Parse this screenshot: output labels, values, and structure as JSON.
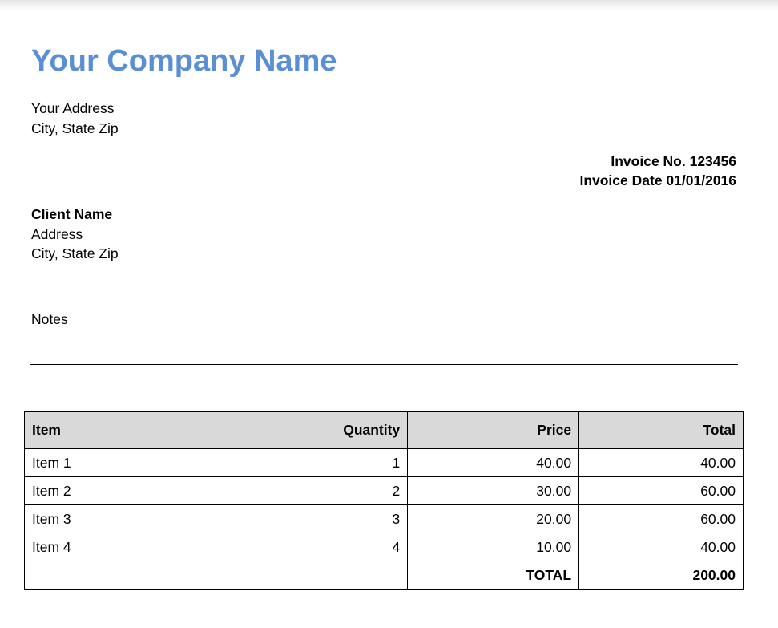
{
  "company": {
    "name": "Your Company Name",
    "address_line1": "Your Address",
    "address_line2": "City, State Zip"
  },
  "invoice": {
    "number_line": "Invoice No. 123456",
    "date_line": "Invoice Date 01/01/2016"
  },
  "client": {
    "name": "Client Name",
    "address_line1": "Address",
    "address_line2": "City, State Zip"
  },
  "notes_label": "Notes",
  "table": {
    "headers": [
      "Item",
      "Quantity",
      "Price",
      "Total"
    ],
    "rows": [
      [
        "Item 1",
        "1",
        "40.00",
        "40.00"
      ],
      [
        "Item 2",
        "2",
        "30.00",
        "60.00"
      ],
      [
        "Item 3",
        "3",
        "20.00",
        "60.00"
      ],
      [
        "Item 4",
        "4",
        "10.00",
        "40.00"
      ]
    ],
    "total_label": "TOTAL",
    "total_value": "200.00"
  },
  "colors": {
    "company_name": "#5a8fd6",
    "header_bg": "#d9d9d9"
  }
}
